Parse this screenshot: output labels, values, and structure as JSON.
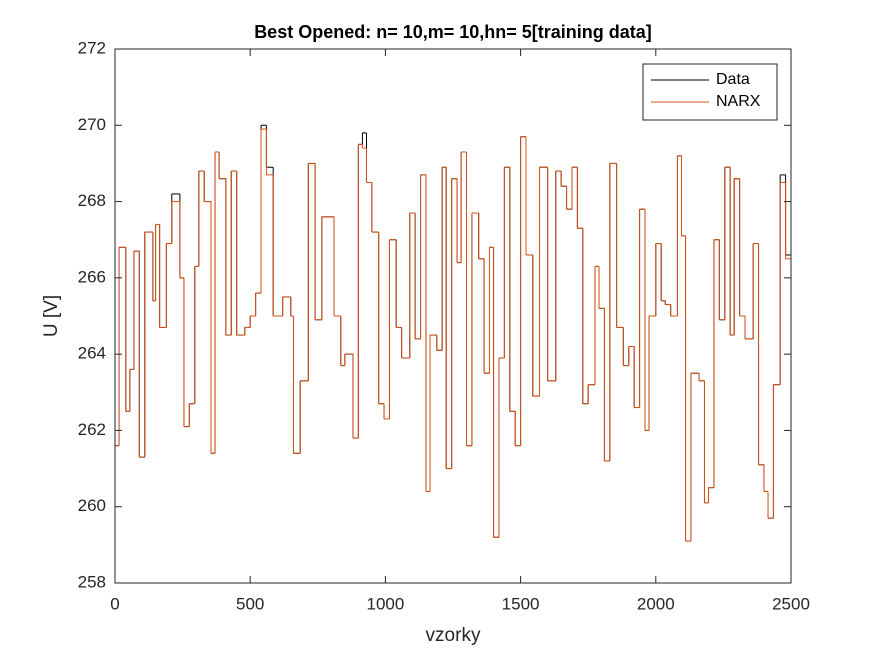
{
  "chart_data": {
    "type": "line",
    "title": "Best Opened: n= 10,m= 10,hn= 5[training data]",
    "xlabel": "vzorky",
    "ylabel": "U [V]",
    "step": "post",
    "xlim": [
      0,
      2500
    ],
    "ylim": [
      258,
      272
    ],
    "xticks": [
      0,
      500,
      1000,
      1500,
      2000,
      2500
    ],
    "yticks": [
      258,
      260,
      262,
      264,
      266,
      268,
      270,
      272
    ],
    "legend": "upper right",
    "x": [
      0,
      15,
      40,
      55,
      70,
      90,
      110,
      140,
      150,
      165,
      190,
      210,
      240,
      255,
      275,
      295,
      310,
      330,
      355,
      370,
      385,
      410,
      430,
      450,
      480,
      500,
      520,
      540,
      560,
      585,
      620,
      650,
      660,
      685,
      715,
      740,
      765,
      790,
      810,
      835,
      850,
      880,
      900,
      915,
      930,
      950,
      975,
      995,
      1015,
      1040,
      1060,
      1090,
      1110,
      1130,
      1150,
      1165,
      1190,
      1210,
      1225,
      1245,
      1265,
      1280,
      1300,
      1320,
      1345,
      1365,
      1385,
      1400,
      1420,
      1440,
      1460,
      1480,
      1500,
      1520,
      1545,
      1570,
      1600,
      1630,
      1650,
      1670,
      1690,
      1710,
      1730,
      1750,
      1775,
      1790,
      1810,
      1830,
      1855,
      1880,
      1900,
      1920,
      1940,
      1960,
      1975,
      2000,
      2020,
      2035,
      2055,
      2080,
      2095,
      2110,
      2130,
      2160,
      2180,
      2195,
      2215,
      2235,
      2255,
      2275,
      2290,
      2310,
      2330,
      2360,
      2380,
      2400,
      2415,
      2435,
      2460,
      2480
    ],
    "series": [
      {
        "name": "Data",
        "color": "#000000",
        "values": [
          261.6,
          266.8,
          262.5,
          263.6,
          266.7,
          261.3,
          267.2,
          265.4,
          267.4,
          264.7,
          266.9,
          268.2,
          266.0,
          262.1,
          262.7,
          266.3,
          268.8,
          268.0,
          261.4,
          269.3,
          268.6,
          264.5,
          268.8,
          264.5,
          264.7,
          265.0,
          265.6,
          270.0,
          268.9,
          265.0,
          265.5,
          265.0,
          261.4,
          263.3,
          269.0,
          264.9,
          267.6,
          267.6,
          265.0,
          263.7,
          264.0,
          261.8,
          269.5,
          269.8,
          268.5,
          267.2,
          262.7,
          262.3,
          267.0,
          264.7,
          263.9,
          267.7,
          264.4,
          268.7,
          260.4,
          264.5,
          264.1,
          268.9,
          261.0,
          268.6,
          266.4,
          269.3,
          261.6,
          267.7,
          266.5,
          263.5,
          266.8,
          259.2,
          263.9,
          268.9,
          262.5,
          261.6,
          269.7,
          266.6,
          262.9,
          268.9,
          263.3,
          268.8,
          268.4,
          267.8,
          268.9,
          267.3,
          262.7,
          263.2,
          266.3,
          265.2,
          261.2,
          269.0,
          264.7,
          263.7,
          264.2,
          262.6,
          267.8,
          262.0,
          265.0,
          266.9,
          265.4,
          265.3,
          265.0,
          269.2,
          267.1,
          259.1,
          263.5,
          263.3,
          260.1,
          260.5,
          267.0,
          264.9,
          268.9,
          264.5,
          268.6,
          265.0,
          264.4,
          266.9,
          261.1,
          260.4,
          259.7,
          263.2,
          268.7,
          266.6
        ]
      },
      {
        "name": "NARX",
        "color": "#d95319",
        "values": [
          261.6,
          266.8,
          262.5,
          263.6,
          266.7,
          261.3,
          267.2,
          265.4,
          267.4,
          264.7,
          266.9,
          268.0,
          266.0,
          262.1,
          262.7,
          266.3,
          268.8,
          268.0,
          261.4,
          269.3,
          268.6,
          264.5,
          268.8,
          264.5,
          264.7,
          265.0,
          265.6,
          269.9,
          268.7,
          265.0,
          265.5,
          265.0,
          261.4,
          263.3,
          269.0,
          264.9,
          267.6,
          267.6,
          265.0,
          263.7,
          264.0,
          261.8,
          269.5,
          269.4,
          268.5,
          267.2,
          262.7,
          262.3,
          267.0,
          264.7,
          263.9,
          267.7,
          264.4,
          268.7,
          260.4,
          264.5,
          264.1,
          268.9,
          261.0,
          268.6,
          266.4,
          269.3,
          261.6,
          267.7,
          266.5,
          263.5,
          266.8,
          259.2,
          263.9,
          268.9,
          262.5,
          261.6,
          269.7,
          266.6,
          262.9,
          268.9,
          263.3,
          268.8,
          268.4,
          267.8,
          268.9,
          267.3,
          262.7,
          263.2,
          266.3,
          265.2,
          261.2,
          269.0,
          264.7,
          263.7,
          264.2,
          262.6,
          267.8,
          262.0,
          265.0,
          266.9,
          265.4,
          265.3,
          265.0,
          269.2,
          267.1,
          259.1,
          263.5,
          263.3,
          260.1,
          260.5,
          267.0,
          264.9,
          268.9,
          264.5,
          268.6,
          265.0,
          264.4,
          266.9,
          261.1,
          260.4,
          259.7,
          263.2,
          268.5,
          266.5
        ]
      }
    ]
  }
}
